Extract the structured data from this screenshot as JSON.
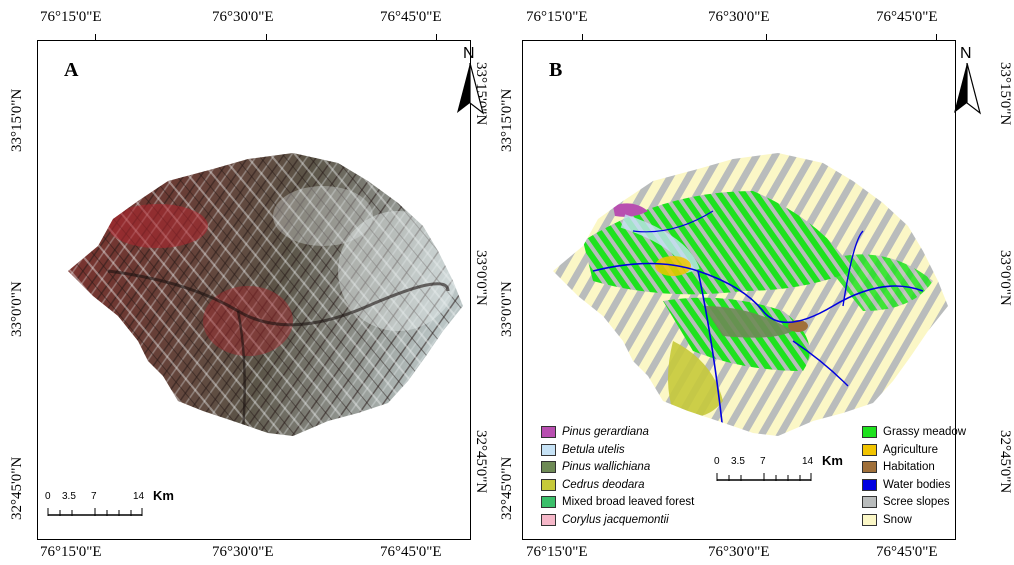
{
  "top_lon_labels": [
    "76°15'0\"E",
    "76°30'0\"E",
    "76°45'0\"E"
  ],
  "bottom_lon_labels": [
    "76°15'0\"E",
    "76°30'0\"E",
    "76°45'0\"E"
  ],
  "lat_labels": [
    "33°15'0\"N",
    "33°0'0\"N",
    "32°45'0\"N"
  ],
  "panel_a": {
    "letter": "A",
    "north": "N",
    "scale": {
      "ticks": [
        "0",
        "3.5",
        "7",
        "14"
      ],
      "unit": "Km"
    }
  },
  "panel_b": {
    "letter": "B",
    "north": "N",
    "scale": {
      "ticks": [
        "0",
        "3.5",
        "7",
        "14"
      ],
      "unit": "Km"
    }
  },
  "legend_left": [
    {
      "label": "Pinus gerardiana",
      "color": "#b84fb0",
      "italic": true
    },
    {
      "label": "Betula utelis",
      "color": "#c6e2f5",
      "italic": true
    },
    {
      "label": "Pinus wallichiana",
      "color": "#6e8a55",
      "italic": true
    },
    {
      "label": "Cedrus deodara",
      "color": "#c6c93a",
      "italic": true
    },
    {
      "label": "Mixed broad leaved forest",
      "color": "#3bbf6a",
      "italic": false
    },
    {
      "label": "Corylus jacquemontii",
      "color": "#f5b7c8",
      "italic": true
    }
  ],
  "legend_right": [
    {
      "label": "Grassy meadow",
      "color": "#1ee21e",
      "italic": false
    },
    {
      "label": "Agriculture",
      "color": "#f2c400",
      "italic": false
    },
    {
      "label": "Habitation",
      "color": "#a0703a",
      "italic": false
    },
    {
      "label": "Water bodies",
      "color": "#0000e0",
      "italic": false
    },
    {
      "label": "Scree slopes",
      "color": "#b9bcbc",
      "italic": false
    },
    {
      "label": "Snow",
      "color": "#fbf7c6",
      "italic": false
    }
  ]
}
